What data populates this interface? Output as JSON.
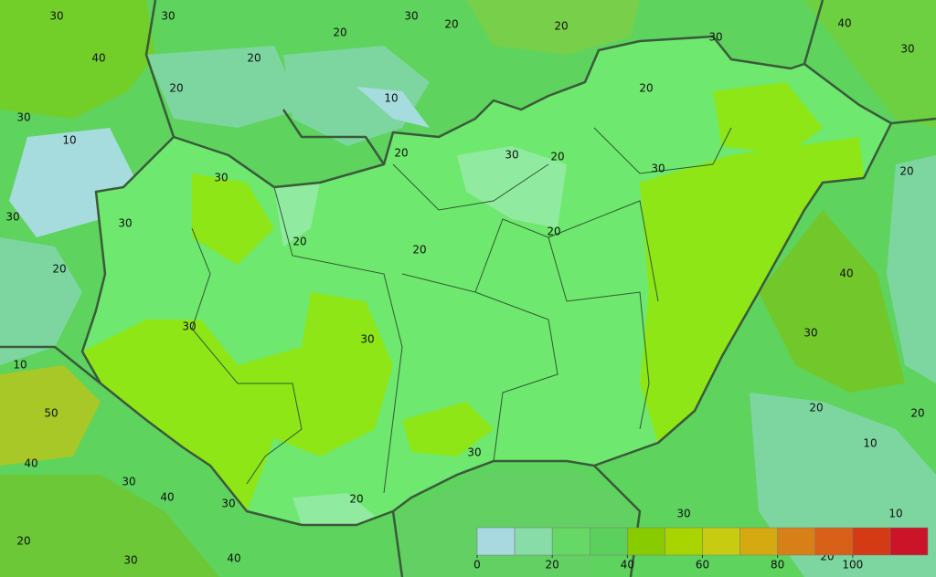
{
  "contour_labels": [
    "30",
    "30",
    "20",
    "30",
    "20",
    "20",
    "40",
    "40",
    "20",
    "30",
    "30",
    "20",
    "10",
    "20",
    "30",
    "10",
    "20",
    "30",
    "20",
    "30",
    "20",
    "30",
    "30",
    "30",
    "20",
    "20",
    "20",
    "20",
    "40",
    "30",
    "30",
    "30",
    "10",
    "20",
    "50",
    "20",
    "10",
    "30",
    "40",
    "30",
    "40",
    "30",
    "20",
    "30",
    "10",
    "20",
    "30",
    "40",
    "20"
  ],
  "legend": {
    "bins": [
      0,
      10,
      20,
      30,
      40,
      50,
      60,
      70,
      80,
      90,
      100,
      110,
      120
    ],
    "colors": [
      "#a8d8e0",
      "#88dca8",
      "#66d866",
      "#5cd05c",
      "#88cc00",
      "#a8d400",
      "#c8cc10",
      "#d4aa10",
      "#d88018",
      "#d86018",
      "#d43a14",
      "#cc1428"
    ],
    "ticks": [
      0,
      20,
      40,
      60,
      80,
      100
    ]
  }
}
